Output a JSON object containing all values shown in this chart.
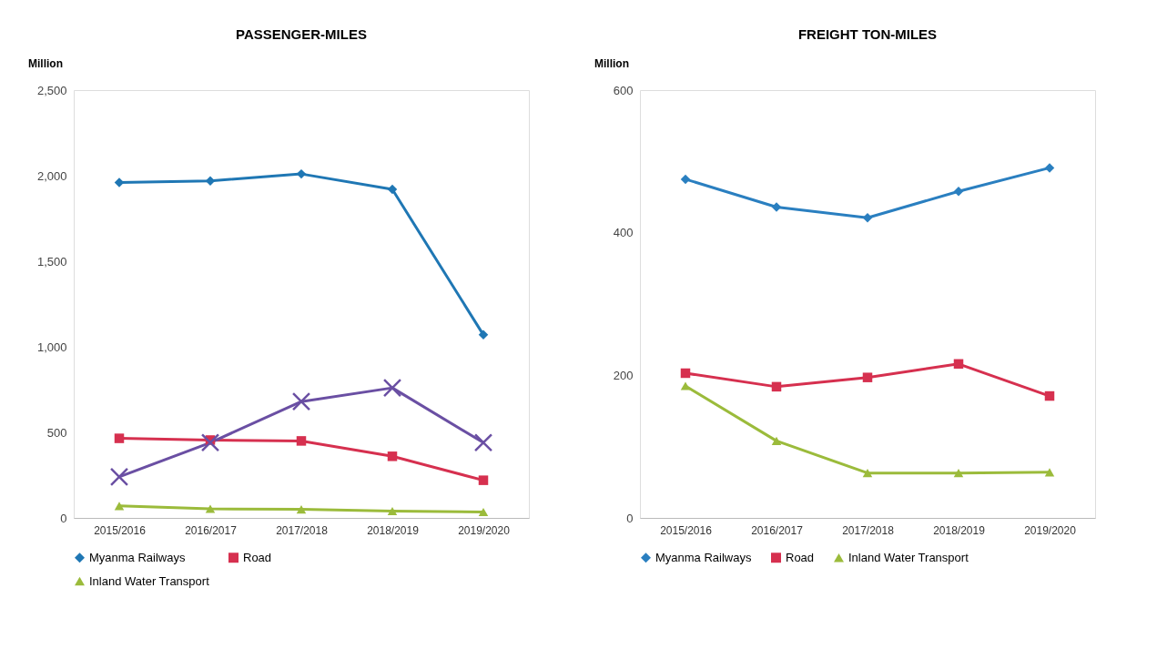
{
  "chart_data": [
    {
      "type": "line",
      "title": "PASSENGER-MILES",
      "ylabel": "Million",
      "categories": [
        "2015/2016",
        "2016/2017",
        "2017/2018",
        "2018/2019",
        "2019/2020"
      ],
      "ylim": [
        0,
        2500
      ],
      "yticks": [
        0,
        {
          "value": 500,
          "label": "500"
        },
        {
          "value": 1000,
          "label": "1,000"
        },
        {
          "value": 1500,
          "label": "1,500"
        },
        {
          "value": 2000,
          "label": "2,000"
        },
        {
          "value": 2500,
          "label": "2,500"
        }
      ],
      "grid": false,
      "legend": "bottom",
      "series": [
        {
          "name": "Myanma Railways",
          "color": "#1f77b4",
          "marker": "diamond",
          "values": [
            1960,
            1970,
            2010,
            1920,
            1070
          ]
        },
        {
          "name": "Road",
          "color": "#d6304f",
          "marker": "square",
          "values": [
            465,
            455,
            450,
            360,
            220
          ]
        },
        {
          "name": "Inland Water Transport",
          "color": "#9bbb3b",
          "marker": "triangle",
          "values": [
            70,
            53,
            50,
            40,
            35
          ]
        },
        {
          "color": "#6a4fa3",
          "marker": "cross",
          "values": [
            240,
            440,
            680,
            760,
            440
          ]
        }
      ]
    },
    {
      "type": "line",
      "title": "FREIGHT TON-MILES",
      "ylabel": "Million",
      "categories": [
        "2015/2016",
        "2016/2017",
        "2017/2018",
        "2018/2019",
        "2019/2020"
      ],
      "ylim": [
        0,
        600
      ],
      "yticks": [
        0,
        200,
        400,
        600
      ],
      "grid": false,
      "legend": "bottom",
      "series": [
        {
          "name": "Myanma Railways",
          "color": "#2a7fc0",
          "marker": "diamond",
          "values": [
            475,
            436,
            421,
            458,
            491
          ]
        },
        {
          "name": "Road",
          "color": "#d6304f",
          "marker": "square",
          "values": [
            203,
            184,
            197,
            216,
            171
          ]
        },
        {
          "name": "Inland Water Transport",
          "color": "#9bbb3b",
          "marker": "triangle",
          "values": [
            185,
            108,
            63,
            63,
            64
          ]
        }
      ]
    }
  ]
}
